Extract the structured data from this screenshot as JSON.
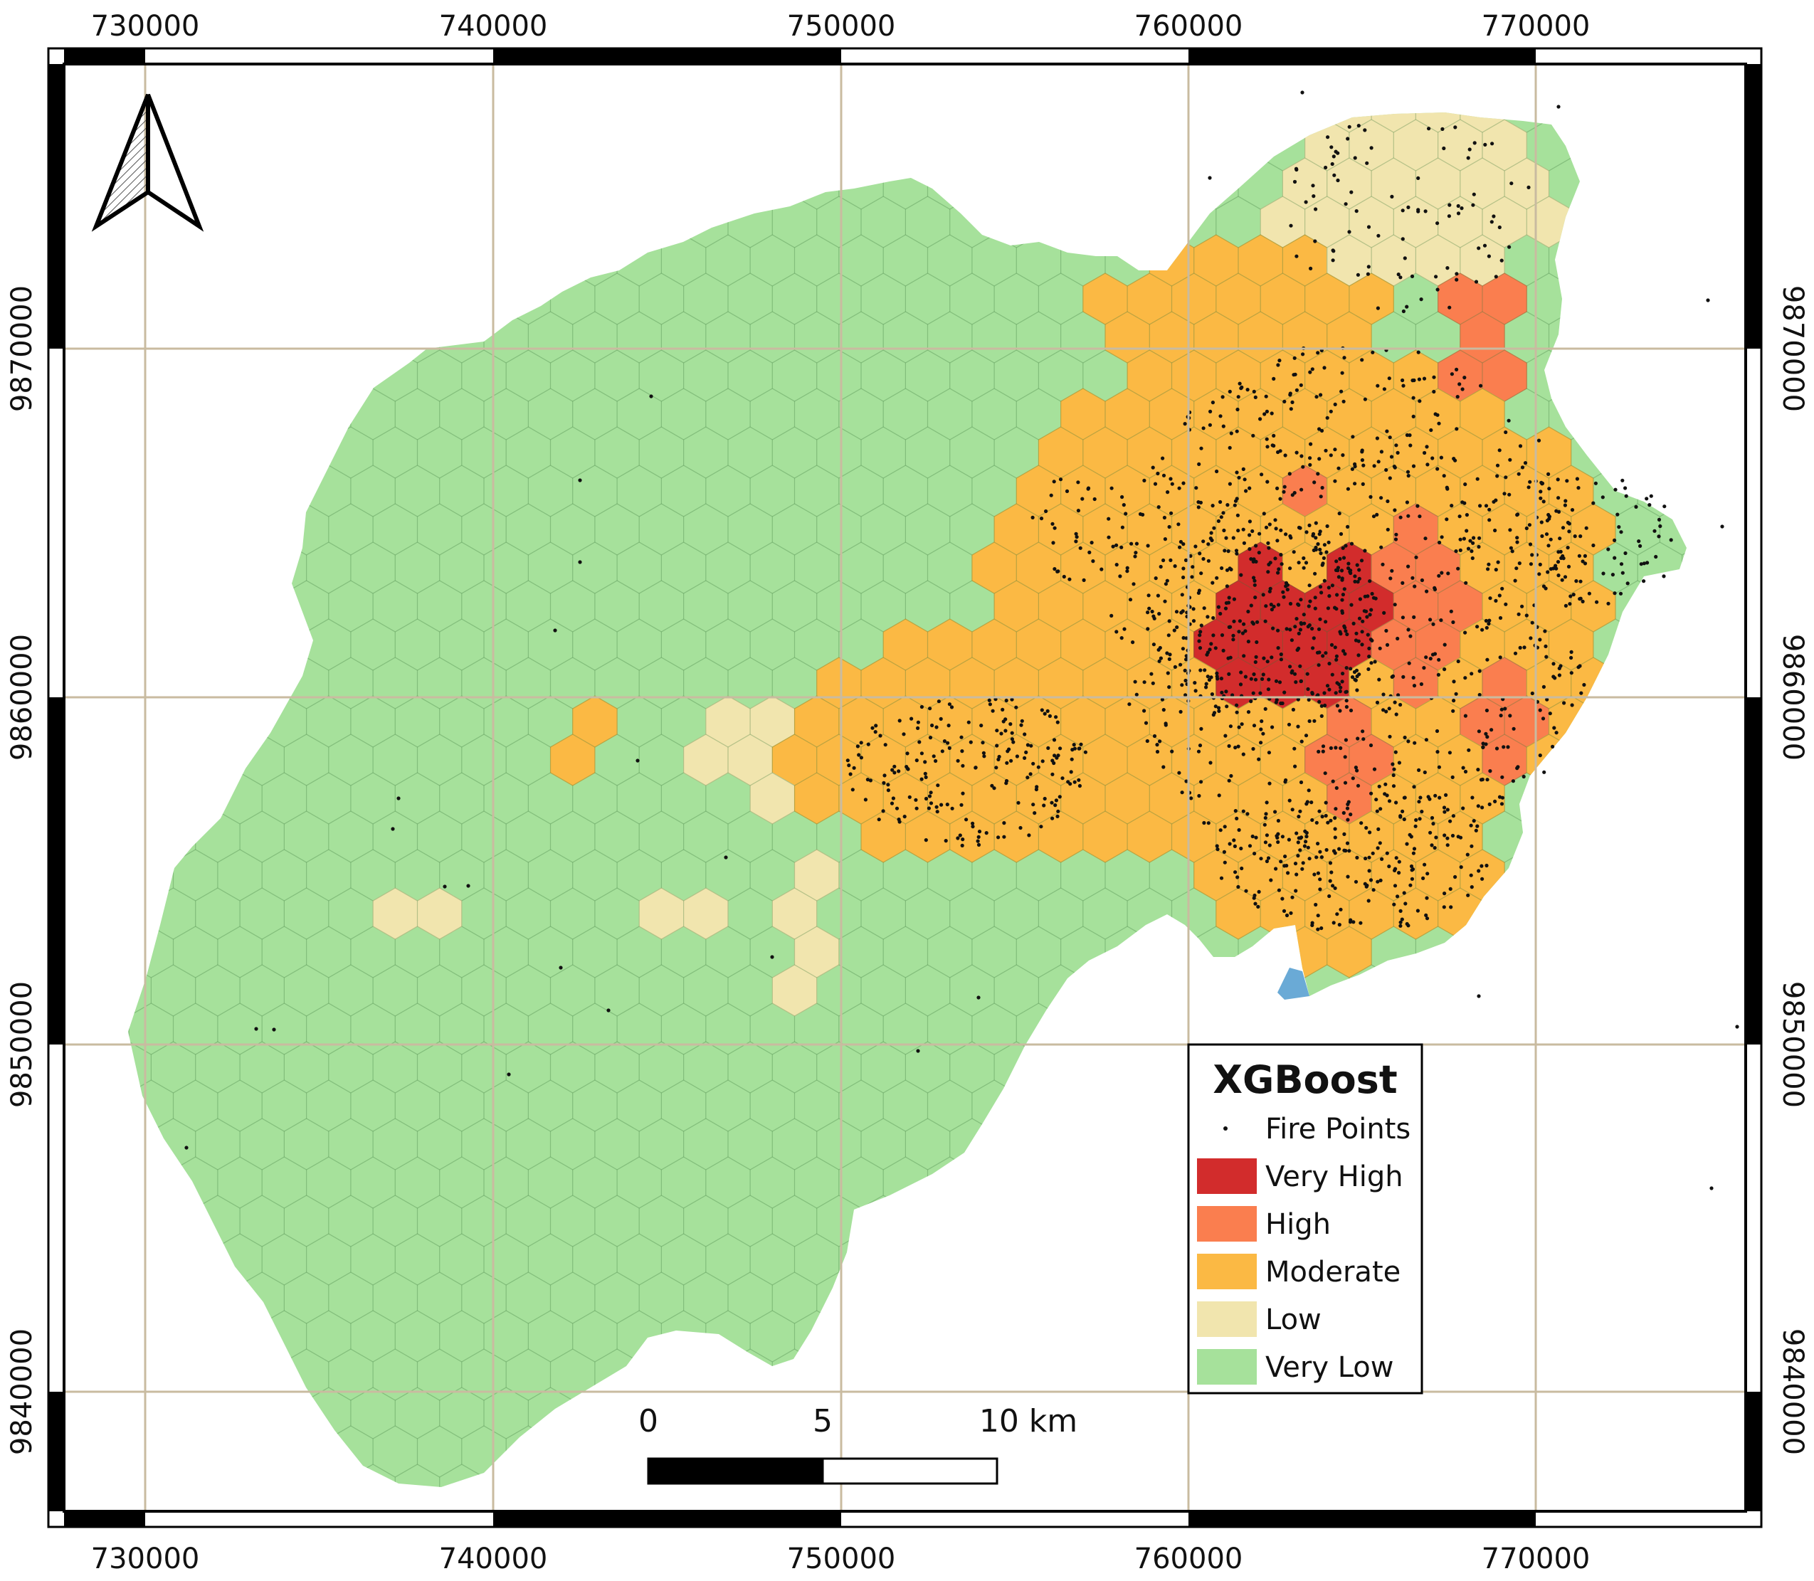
{
  "map": {
    "legend": {
      "title": "XGBoost",
      "items": [
        {
          "label": "Fire Points",
          "kind": "point",
          "color": "#111111"
        },
        {
          "label": "Very High",
          "kind": "class",
          "color": "#d22c2c"
        },
        {
          "label": "High",
          "kind": "class",
          "color": "#fa7e4f"
        },
        {
          "label": "Moderate",
          "kind": "class",
          "color": "#fbb944"
        },
        {
          "label": "Low",
          "kind": "class",
          "color": "#f1e5ae"
        },
        {
          "label": "Very Low",
          "kind": "class",
          "color": "#a6e19b"
        }
      ]
    },
    "x_ticks": [
      "730000",
      "740000",
      "750000",
      "760000",
      "770000"
    ],
    "y_ticks": [
      "9870000",
      "9860000",
      "9850000",
      "9840000"
    ],
    "scale_bar": {
      "labels": [
        "0",
        "5",
        "10 km"
      ]
    },
    "north_arrow": {
      "icon": "north-arrow-icon"
    },
    "colors": {
      "grid": "#c9bba0",
      "frame": "#000000",
      "very_low": "#a6e19b",
      "low": "#f1e5ae",
      "moderate": "#fbb944",
      "high": "#fa7e4f",
      "very_high": "#d22c2c",
      "water": "#6aaad6"
    }
  }
}
